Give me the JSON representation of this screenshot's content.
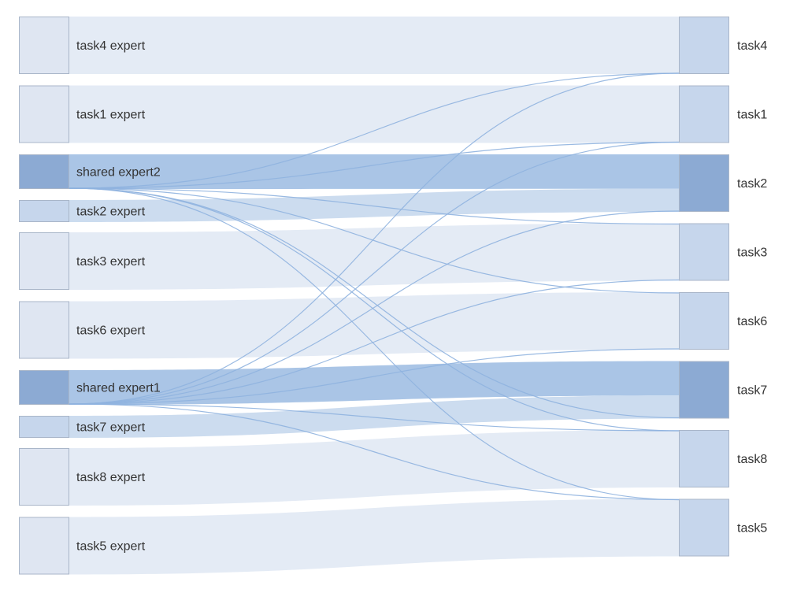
{
  "chart_data": {
    "type": "sankey",
    "colors": {
      "light_node": "#dfe6f2",
      "mid_node": "#c6d6ec",
      "strong_node": "#8caad3",
      "node_stroke": "#a9b6c9",
      "light_band": "#e4ebf5",
      "strong_band": "#aac5e6",
      "mid_band": "#ccdcef",
      "thin_link": "#8fb2df",
      "label": "#333333"
    },
    "sources": [
      {
        "id": "t4e",
        "label": "task4 expert",
        "weight": 1,
        "shade": "light"
      },
      {
        "id": "t1e",
        "label": "task1 expert",
        "weight": 1,
        "shade": "light"
      },
      {
        "id": "se2",
        "label": "shared expert2",
        "weight": 0.6,
        "shade": "strong"
      },
      {
        "id": "t2e",
        "label": "task2 expert",
        "weight": 0.4,
        "shade": "mid"
      },
      {
        "id": "t3e",
        "label": "task3 expert",
        "weight": 1,
        "shade": "light"
      },
      {
        "id": "t6e",
        "label": "task6 expert",
        "weight": 1,
        "shade": "light"
      },
      {
        "id": "se1",
        "label": "shared expert1",
        "weight": 0.6,
        "shade": "strong"
      },
      {
        "id": "t7e",
        "label": "task7 expert",
        "weight": 0.4,
        "shade": "mid"
      },
      {
        "id": "t8e",
        "label": "task8 expert",
        "weight": 1,
        "shade": "light"
      },
      {
        "id": "t5e",
        "label": "task5 expert",
        "weight": 1,
        "shade": "light"
      }
    ],
    "targets": [
      {
        "id": "t4",
        "label": "task4",
        "shade": "mid"
      },
      {
        "id": "t1",
        "label": "task1",
        "shade": "mid"
      },
      {
        "id": "t2",
        "label": "task2",
        "shade": "strong"
      },
      {
        "id": "t3",
        "label": "task3",
        "shade": "mid"
      },
      {
        "id": "t6",
        "label": "task6",
        "shade": "mid"
      },
      {
        "id": "t7",
        "label": "task7",
        "shade": "strong"
      },
      {
        "id": "t8",
        "label": "task8",
        "shade": "mid"
      },
      {
        "id": "t5",
        "label": "task5",
        "shade": "mid"
      }
    ],
    "links": [
      {
        "source": "t4e",
        "target": "t4",
        "value": 1
      },
      {
        "source": "t1e",
        "target": "t1",
        "value": 1
      },
      {
        "source": "se2",
        "target": "t2",
        "value": 0.6
      },
      {
        "source": "t2e",
        "target": "t2",
        "value": 0.4
      },
      {
        "source": "t3e",
        "target": "t3",
        "value": 1
      },
      {
        "source": "t6e",
        "target": "t6",
        "value": 1
      },
      {
        "source": "se1",
        "target": "t7",
        "value": 0.6
      },
      {
        "source": "t7e",
        "target": "t7",
        "value": 0.4
      },
      {
        "source": "t8e",
        "target": "t8",
        "value": 1
      },
      {
        "source": "t5e",
        "target": "t5",
        "value": 1
      },
      {
        "source": "se2",
        "target": "t4",
        "value": 0.01
      },
      {
        "source": "se2",
        "target": "t1",
        "value": 0.01
      },
      {
        "source": "se2",
        "target": "t3",
        "value": 0.01
      },
      {
        "source": "se2",
        "target": "t6",
        "value": 0.01
      },
      {
        "source": "se2",
        "target": "t7",
        "value": 0.01
      },
      {
        "source": "se2",
        "target": "t8",
        "value": 0.01
      },
      {
        "source": "se2",
        "target": "t5",
        "value": 0.01
      },
      {
        "source": "se1",
        "target": "t4",
        "value": 0.01
      },
      {
        "source": "se1",
        "target": "t1",
        "value": 0.01
      },
      {
        "source": "se1",
        "target": "t2",
        "value": 0.01
      },
      {
        "source": "se1",
        "target": "t3",
        "value": 0.01
      },
      {
        "source": "se1",
        "target": "t6",
        "value": 0.01
      },
      {
        "source": "se1",
        "target": "t8",
        "value": 0.01
      },
      {
        "source": "se1",
        "target": "t5",
        "value": 0.01
      }
    ]
  }
}
